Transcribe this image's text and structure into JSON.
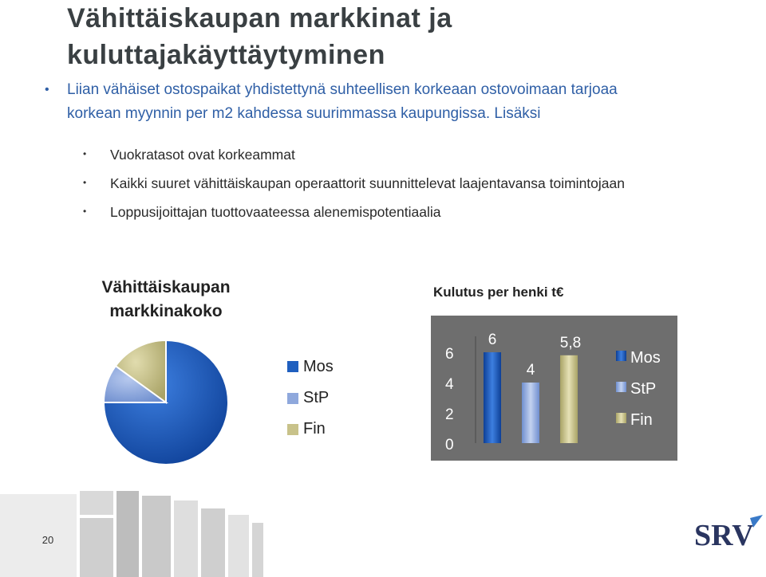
{
  "slide": {
    "title_line1": "Vähittäiskaupan markkinat ja",
    "title_line2": "kuluttajakäyttäytyminen",
    "lead_line1": "Liian vähäiset ostospaikat yhdistettynä suhteellisen korkeaan ostovoimaan tarjoaa",
    "lead_line2": "korkean myynnin per m2 kahdessa suurimmassa kaupungissa. Lisäksi",
    "bullet_glyph": "•",
    "sub_bullets": [
      "Vuokratasot ovat korkeammat",
      "Kaikki suuret vähittäiskaupan operaattorit suunnittelevat laajentavansa toimintojaan",
      "Loppusijoittajan tuottovaateessa alenemispotentiaalia"
    ],
    "page_number": "20",
    "logo_text": "SRV"
  },
  "chart_data": [
    {
      "type": "pie",
      "title_line1": "Vähittäiskaupan",
      "title_line2": "markkinakoko",
      "categories": [
        "Mos",
        "StP",
        "Fin"
      ],
      "values": [
        75,
        10,
        15
      ],
      "legend_position": "right",
      "colors": [
        "#1f5fbf",
        "#8fa8dc",
        "#c8c28a"
      ]
    },
    {
      "type": "bar",
      "title": "Kulutus per henki t€",
      "categories": [
        "Mos",
        "StP",
        "Fin"
      ],
      "values": [
        6,
        4,
        5.8
      ],
      "data_labels": [
        "6",
        "4",
        "5,8"
      ],
      "y_ticks": [
        "0",
        "2",
        "4",
        "6"
      ],
      "ylim": [
        0,
        6
      ],
      "grid": false,
      "legend_position": "right",
      "colors": [
        "#1f5fbf",
        "#8fa8dc",
        "#c8c28a"
      ],
      "background": "#6e6e6e"
    }
  ]
}
